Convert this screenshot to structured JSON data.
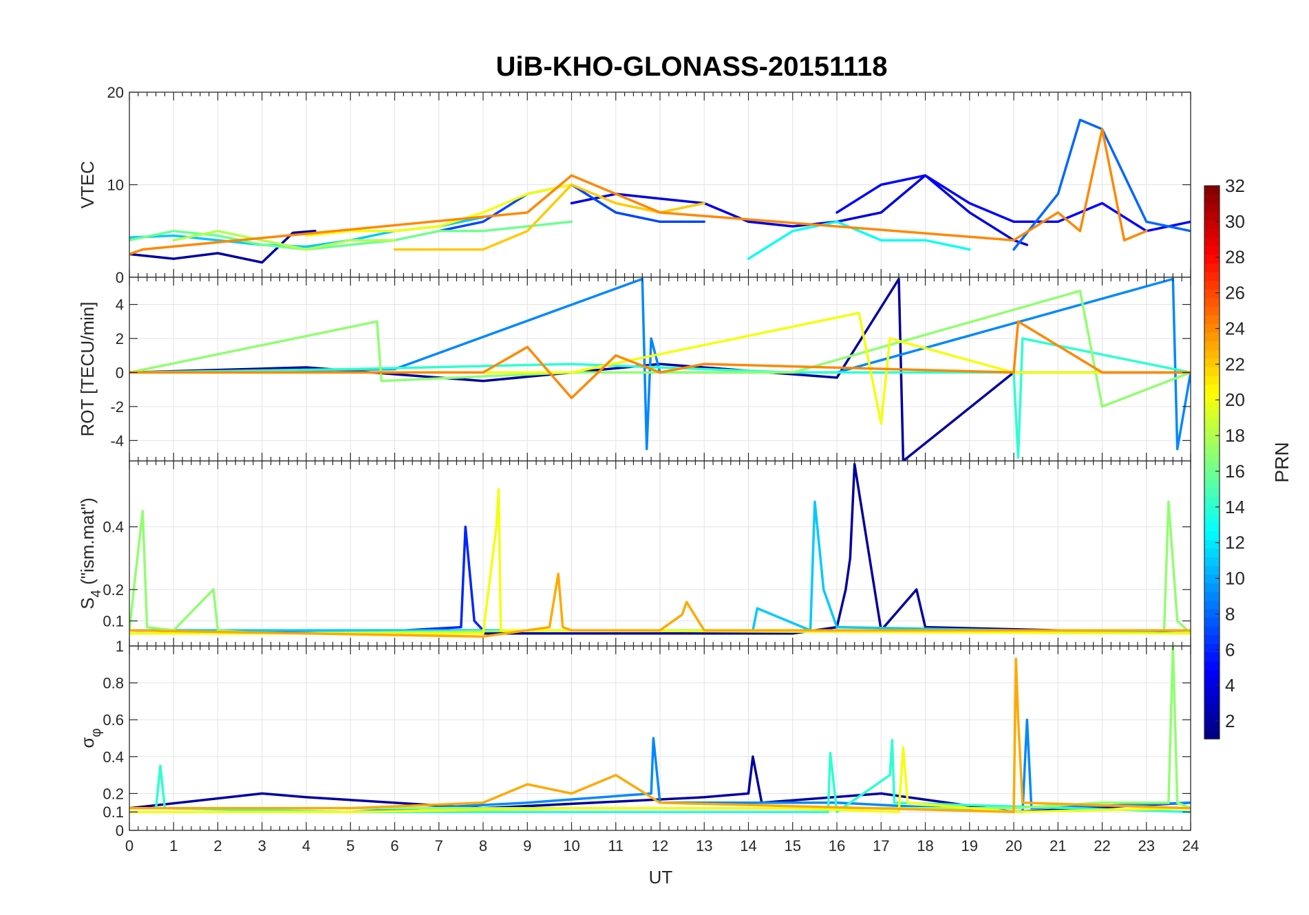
{
  "figure_title": "UiB-KHO-GLONASS-20151118",
  "chart_data": {
    "type": "line",
    "title": "UiB-KHO-GLONASS-20151118",
    "xlabel": "UT",
    "xlim": [
      0,
      24
    ],
    "x_ticks": [
      0,
      1,
      2,
      3,
      4,
      5,
      6,
      7,
      8,
      9,
      10,
      11,
      12,
      13,
      14,
      15,
      16,
      17,
      18,
      19,
      20,
      21,
      22,
      23,
      24
    ],
    "x_tick_labels": [
      "0",
      "1",
      "2",
      "3",
      "4",
      "5",
      "6",
      "7",
      "8",
      "9",
      "10",
      "11",
      "12",
      "13",
      "14",
      "15",
      "16",
      "17",
      "18",
      "19",
      "20",
      "21",
      "22",
      "23",
      "24"
    ],
    "grid": true,
    "colormap": "jet",
    "colorbar": {
      "label": "PRN",
      "range": [
        1,
        32
      ],
      "ticks": [
        2,
        4,
        6,
        8,
        10,
        12,
        14,
        16,
        18,
        20,
        22,
        24,
        26,
        28,
        30,
        32
      ],
      "tick_labels": [
        "2",
        "4",
        "6",
        "8",
        "10",
        "12",
        "14",
        "16",
        "18",
        "20",
        "22",
        "24",
        "26",
        "28",
        "30",
        "32"
      ],
      "placement": "right"
    },
    "panels": [
      {
        "name": "vtec",
        "ylabel": "VTEC",
        "ylim": [
          0,
          20
        ],
        "y_ticks": [
          0,
          10,
          20
        ],
        "y_tick_labels": [
          "0",
          "10",
          "20"
        ],
        "series": [
          {
            "prn": 2,
            "x": [
              0,
              1,
              2,
              3,
              3.7,
              4.2
            ],
            "y": [
              2.5,
              2.0,
              2.6,
              1.6,
              4.8,
              5.0
            ]
          },
          {
            "prn": 4,
            "x": [
              10,
              11,
              12,
              13,
              14,
              15,
              16,
              17,
              18,
              19,
              20,
              20.3
            ],
            "y": [
              8,
              9,
              8.5,
              8,
              6,
              5.5,
              6,
              7,
              11,
              7,
              4,
              3.5
            ]
          },
          {
            "prn": 5,
            "x": [
              16,
              17,
              18,
              19,
              20,
              21,
              22,
              23,
              24
            ],
            "y": [
              7,
              10,
              11,
              8,
              6,
              6,
              8,
              5,
              6
            ]
          },
          {
            "prn": 7,
            "x": [
              7,
              8,
              9,
              10,
              11,
              12,
              13
            ],
            "y": [
              5,
              6,
              9,
              10,
              7,
              6,
              6
            ]
          },
          {
            "prn": 8,
            "x": [
              20,
              21,
              21.5,
              22,
              23,
              24
            ],
            "y": [
              3,
              9,
              17,
              16,
              6,
              5
            ]
          },
          {
            "prn": 11,
            "x": [
              0,
              1,
              2,
              3,
              4,
              5,
              6,
              7,
              8
            ],
            "y": [
              4.3,
              4.5,
              4,
              3.5,
              3.3,
              4,
              5,
              5.5,
              6.5
            ]
          },
          {
            "prn": 13,
            "x": [
              14,
              15,
              16,
              17,
              18,
              19
            ],
            "y": [
              2,
              5,
              6,
              4,
              4,
              3
            ]
          },
          {
            "prn": 16,
            "x": [
              0,
              1,
              2,
              3,
              4,
              5,
              6,
              7,
              8,
              9,
              10
            ],
            "y": [
              4,
              5,
              4.5,
              3.5,
              3,
              3.5,
              4,
              5,
              5,
              5.5,
              6
            ]
          },
          {
            "prn": 18,
            "x": [
              1,
              2,
              3,
              4,
              5,
              6
            ],
            "y": [
              4,
              5,
              4,
              3,
              4,
              4
            ]
          },
          {
            "prn": 20,
            "x": [
              4,
              5,
              6,
              7,
              8,
              9,
              10
            ],
            "y": [
              4.5,
              5,
              5,
              5.5,
              7,
              9,
              10
            ]
          },
          {
            "prn": 22,
            "x": [
              6,
              7,
              8,
              9,
              10,
              11,
              12,
              13
            ],
            "y": [
              3,
              3,
              3,
              5,
              10,
              8,
              7,
              8
            ]
          },
          {
            "prn": 24,
            "x": [
              0,
              0.3,
              9,
              10,
              11,
              12,
              20,
              21,
              21.5,
              22,
              22.5,
              23
            ],
            "y": [
              2.5,
              3,
              7,
              11,
              9,
              7,
              4,
              7,
              5,
              16,
              4,
              5
            ]
          }
        ]
      },
      {
        "name": "rot",
        "ylabel": "ROT [TECU/min]",
        "ylim": [
          -5.2,
          5.6
        ],
        "y_ticks": [
          -4,
          -2,
          0,
          2,
          4
        ],
        "y_tick_labels": [
          "-4",
          "-2",
          "0",
          "2",
          "4"
        ],
        "series": [
          {
            "prn": 2,
            "x": [
              0,
              4,
              8,
              12,
              16,
              17.4,
              17.5,
              20,
              24
            ],
            "y": [
              0,
              0.3,
              -0.5,
              0.5,
              -0.3,
              5.5,
              -5.2,
              0,
              0
            ]
          },
          {
            "prn": 9,
            "x": [
              0,
              6,
              11.6,
              11.7,
              11.8,
              12,
              16,
              23.6,
              23.7,
              24
            ],
            "y": [
              0,
              0.2,
              5.5,
              -4.5,
              2,
              0,
              0,
              5.5,
              -4.5,
              0
            ]
          },
          {
            "prn": 14,
            "x": [
              0,
              5,
              10,
              15,
              20,
              20.1,
              20.2,
              24
            ],
            "y": [
              0,
              0.2,
              0.5,
              0,
              0,
              -5,
              2,
              0
            ]
          },
          {
            "prn": 17,
            "x": [
              0,
              5.6,
              5.7,
              10,
              15,
              21.5,
              22,
              24
            ],
            "y": [
              0,
              3,
              -0.5,
              0,
              0,
              4.8,
              -2,
              0
            ]
          },
          {
            "prn": 20,
            "x": [
              0,
              5,
              10,
              16.5,
              17,
              17.2,
              20,
              24
            ],
            "y": [
              0,
              0,
              0,
              3.5,
              -3,
              2,
              0,
              0
            ]
          },
          {
            "prn": 24,
            "x": [
              0,
              8,
              9,
              10,
              11,
              12,
              13,
              20,
              20.1,
              22,
              24
            ],
            "y": [
              0,
              0,
              1.5,
              -1.5,
              1,
              0,
              0.5,
              0,
              3,
              0,
              0
            ]
          }
        ]
      },
      {
        "name": "s4",
        "ylabel": "S4 (\"ism.mat\")",
        "ylabel_base": "S",
        "ylabel_sub": "4",
        "ylabel_rest": " (\"ism.mat\")",
        "ylim": [
          0.02,
          0.61
        ],
        "y_ticks": [
          0.1,
          0.2,
          0.4
        ],
        "y_tick_labels": [
          "0.1",
          "0.2",
          "0.4"
        ],
        "series": [
          {
            "prn": 2,
            "x": [
              0,
              5,
              10,
              15,
              16,
              16.2,
              16.3,
              16.4,
              17,
              17.8,
              18,
              24
            ],
            "y": [
              0.07,
              0.06,
              0.06,
              0.06,
              0.08,
              0.2,
              0.3,
              0.6,
              0.07,
              0.2,
              0.08,
              0.06
            ]
          },
          {
            "prn": 6,
            "x": [
              0,
              5,
              7.5,
              7.6,
              7.7,
              7.8,
              8,
              12,
              24
            ],
            "y": [
              0.07,
              0.06,
              0.08,
              0.4,
              0.25,
              0.1,
              0.07,
              0.07,
              0.07
            ]
          },
          {
            "prn": 11,
            "x": [
              0,
              8,
              14.1,
              14.2,
              15.4,
              15.5,
              15.7,
              16,
              24
            ],
            "y": [
              0.07,
              0.07,
              0.07,
              0.14,
              0.07,
              0.48,
              0.2,
              0.08,
              0.06
            ]
          },
          {
            "prn": 17,
            "x": [
              0,
              0.1,
              0.3,
              0.4,
              1,
              1.9,
              2,
              3,
              10,
              23.4,
              23.5,
              23.7,
              24
            ],
            "y": [
              0.07,
              0.2,
              0.45,
              0.08,
              0.07,
              0.2,
              0.07,
              0.06,
              0.07,
              0.07,
              0.48,
              0.1,
              0.06
            ]
          },
          {
            "prn": 20,
            "x": [
              0,
              8,
              8.3,
              8.35,
              8.4,
              9,
              24
            ],
            "y": [
              0.06,
              0.06,
              0.4,
              0.52,
              0.07,
              0.07,
              0.06
            ]
          },
          {
            "prn": 23,
            "x": [
              0,
              8,
              9.5,
              9.7,
              9.8,
              10,
              12,
              12.5,
              12.6,
              13,
              24
            ],
            "y": [
              0.07,
              0.05,
              0.08,
              0.25,
              0.08,
              0.07,
              0.07,
              0.12,
              0.16,
              0.07,
              0.07
            ]
          }
        ]
      },
      {
        "name": "sigma_phi",
        "ylabel": "σφ",
        "ylabel_base": "σ",
        "ylabel_sub": "φ",
        "ylim": [
          0,
          1
        ],
        "y_ticks": [
          0,
          0.1,
          0.2,
          0.4,
          0.6,
          0.8,
          1
        ],
        "y_tick_labels": [
          "0",
          "0.1",
          "0.2",
          "0.4",
          "0.6",
          "0.8",
          "1"
        ],
        "series": [
          {
            "prn": 2,
            "x": [
              0,
              3,
              4,
              8,
              13,
              14,
              14.1,
              14.3,
              17,
              20,
              24
            ],
            "y": [
              0.12,
              0.2,
              0.18,
              0.12,
              0.18,
              0.2,
              0.4,
              0.15,
              0.2,
              0.1,
              0.15
            ]
          },
          {
            "prn": 9,
            "x": [
              0,
              5,
              9,
              11.8,
              11.85,
              12,
              16,
              20.2,
              20.3,
              20.4,
              24
            ],
            "y": [
              0.1,
              0.1,
              0.15,
              0.2,
              0.5,
              0.15,
              0.15,
              0.1,
              0.6,
              0.12,
              0.15
            ]
          },
          {
            "prn": 14,
            "x": [
              0,
              0.6,
              0.7,
              0.8,
              5,
              10,
              15,
              15.8,
              15.85,
              16,
              17.2,
              17.25,
              17.3,
              24
            ],
            "y": [
              0.12,
              0.12,
              0.35,
              0.12,
              0.1,
              0.1,
              0.1,
              0.1,
              0.42,
              0.1,
              0.3,
              0.49,
              0.15,
              0.1
            ]
          },
          {
            "prn": 17,
            "x": [
              0,
              5,
              10,
              15,
              20,
              22,
              23.5,
              23.6,
              23.7,
              24
            ],
            "y": [
              0.12,
              0.12,
              0.12,
              0.12,
              0.12,
              0.15,
              0.15,
              1,
              0.15,
              0.12
            ]
          },
          {
            "prn": 20,
            "x": [
              0,
              5,
              10,
              15,
              17.4,
              17.5,
              17.6,
              20,
              24
            ],
            "y": [
              0.1,
              0.1,
              0.12,
              0.12,
              0.1,
              0.45,
              0.15,
              0.1,
              0.12
            ]
          },
          {
            "prn": 23,
            "x": [
              0,
              5,
              8,
              9,
              10,
              11,
              12,
              20,
              20.05,
              20.1,
              20.2,
              24
            ],
            "y": [
              0.12,
              0.12,
              0.15,
              0.25,
              0.2,
              0.3,
              0.15,
              0.1,
              0.93,
              0.6,
              0.15,
              0.12
            ]
          }
        ]
      }
    ]
  }
}
